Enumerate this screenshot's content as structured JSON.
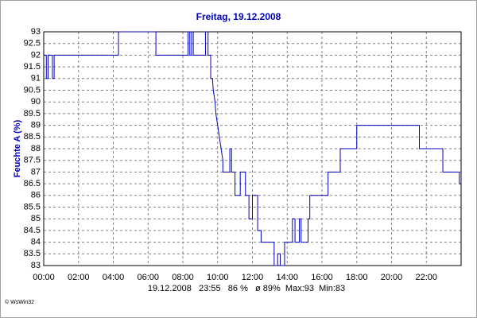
{
  "chart_data": {
    "type": "line",
    "title": "Freitag, 19.12.2008",
    "y_label": "Feuchte A (%)",
    "footer": "19.12.2008   23:55   86 %   ø 89%  Max:93  Min:83",
    "credit": "© WsWin32",
    "color": "#0000c0",
    "grid": true,
    "xlim": [
      0,
      24
    ],
    "ylim": [
      83,
      93
    ],
    "xticks": [
      {
        "value": 0,
        "label": "00:00"
      },
      {
        "value": 2,
        "label": "02:00"
      },
      {
        "value": 4,
        "label": "04:00"
      },
      {
        "value": 6,
        "label": "06:00"
      },
      {
        "value": 8,
        "label": "08:00"
      },
      {
        "value": 10,
        "label": "10:00"
      },
      {
        "value": 12,
        "label": "12:00"
      },
      {
        "value": 14,
        "label": "14:00"
      },
      {
        "value": 16,
        "label": "16:00"
      },
      {
        "value": 18,
        "label": "18:00"
      },
      {
        "value": 20,
        "label": "20:00"
      },
      {
        "value": 22,
        "label": "22:00"
      }
    ],
    "yticks": [
      83,
      83.5,
      84,
      84.5,
      85,
      85.5,
      86,
      86.5,
      87,
      87.5,
      88,
      88.5,
      89,
      89.5,
      90,
      90.5,
      91,
      91.5,
      92,
      92.5,
      93
    ],
    "x": [
      0,
      0.15,
      0.15,
      0.25,
      0.25,
      0.5,
      0.5,
      0.6,
      0.6,
      4.3,
      4.3,
      6.45,
      6.45,
      8.3,
      8.3,
      8.4,
      8.4,
      8.5,
      8.5,
      8.6,
      8.6,
      9.3,
      9.3,
      9.45,
      9.45,
      9.6,
      9.6,
      9.7,
      9.75,
      9.85,
      9.9,
      10.0,
      10.1,
      10.2,
      10.3,
      10.3,
      10.7,
      10.7,
      10.8,
      10.8,
      11.0,
      11.0,
      11.3,
      11.3,
      11.6,
      11.6,
      11.8,
      11.8,
      12.0,
      12.0,
      12.3,
      12.3,
      12.5,
      12.5,
      13.25,
      13.25,
      13.45,
      13.45,
      13.6,
      13.6,
      13.85,
      13.85,
      14.3,
      14.3,
      14.45,
      14.45,
      14.7,
      14.7,
      14.8,
      14.8,
      15.2,
      15.2,
      15.3,
      15.3,
      16.35,
      16.35,
      17.05,
      17.05,
      18.0,
      18.0,
      21.6,
      21.6,
      22.95,
      22.95,
      23.9,
      23.9,
      24
    ],
    "values": [
      92,
      92,
      91,
      91,
      92,
      92,
      91,
      91,
      92,
      92,
      93,
      93,
      92,
      92,
      93,
      93,
      92,
      92,
      93,
      93,
      92,
      92,
      93,
      93,
      92,
      92,
      91,
      91,
      90.5,
      90,
      89.5,
      89,
      88.5,
      88,
      87.5,
      87,
      87,
      88,
      88,
      87,
      87,
      86,
      86,
      87,
      87,
      86,
      86,
      85,
      85,
      86,
      86,
      84.5,
      84.5,
      84,
      84,
      83,
      83,
      83.5,
      83.5,
      83,
      83,
      84,
      84,
      85,
      85,
      84,
      84,
      85,
      85,
      84,
      84,
      85,
      85,
      86,
      86,
      87,
      87,
      88,
      88,
      89,
      89,
      88,
      88,
      87,
      87,
      86.5,
      86.5
    ]
  }
}
